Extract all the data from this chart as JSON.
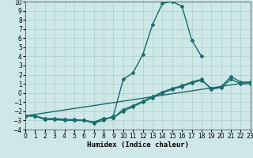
{
  "xlabel": "Humidex (Indice chaleur)",
  "xlim": [
    0,
    23
  ],
  "ylim": [
    -4,
    10
  ],
  "xticks": [
    0,
    1,
    2,
    3,
    4,
    5,
    6,
    7,
    8,
    9,
    10,
    11,
    12,
    13,
    14,
    15,
    16,
    17,
    18,
    19,
    20,
    21,
    22,
    23
  ],
  "yticks": [
    -4,
    -3,
    -2,
    -1,
    0,
    1,
    2,
    3,
    4,
    5,
    6,
    7,
    8,
    9,
    10
  ],
  "bg_color": "#cde8e6",
  "grid_color": "#aacfcd",
  "line_color": "#1a6b6b",
  "line_width": 1.0,
  "marker": "D",
  "marker_size": 2.0,
  "tick_fontsize": 5.5,
  "xlabel_fontsize": 6.5,
  "curves": [
    {
      "x": [
        0,
        1,
        2,
        3,
        4,
        5,
        6,
        7,
        8,
        9,
        10,
        11,
        12,
        13,
        14,
        15,
        16,
        17,
        18
      ],
      "y": [
        -2.5,
        -2.5,
        -2.8,
        -2.8,
        -2.9,
        -2.9,
        -3.0,
        -3.3,
        -3.0,
        -2.5,
        1.5,
        2.2,
        4.2,
        7.5,
        9.8,
        10.0,
        9.5,
        5.8,
        4.0
      ]
    },
    {
      "x": [
        0,
        23
      ],
      "y": [
        -2.5,
        1.2
      ]
    },
    {
      "x": [
        0,
        1,
        2,
        3,
        4,
        5,
        6,
        7,
        8,
        9,
        10,
        11,
        12,
        13,
        14,
        15,
        16,
        17,
        18,
        19,
        20,
        21,
        22,
        23
      ],
      "y": [
        -2.5,
        -2.5,
        -2.9,
        -2.9,
        -3.0,
        -3.0,
        -3.0,
        -3.2,
        -2.8,
        -2.7,
        -2.0,
        -1.5,
        -1.0,
        -0.5,
        0.0,
        0.4,
        0.7,
        1.1,
        1.4,
        0.5,
        0.7,
        1.8,
        1.2,
        1.2
      ]
    },
    {
      "x": [
        0,
        1,
        2,
        3,
        4,
        5,
        6,
        7,
        8,
        9,
        10,
        11,
        12,
        13,
        14,
        15,
        16,
        17,
        18,
        19,
        20,
        21,
        22,
        23
      ],
      "y": [
        -2.5,
        -2.5,
        -2.9,
        -2.9,
        -2.9,
        -3.0,
        -3.0,
        -3.2,
        -2.8,
        -2.7,
        -1.8,
        -1.4,
        -0.9,
        -0.4,
        0.1,
        0.5,
        0.8,
        1.2,
        1.5,
        0.4,
        0.6,
        1.5,
        1.0,
        1.0
      ]
    }
  ]
}
